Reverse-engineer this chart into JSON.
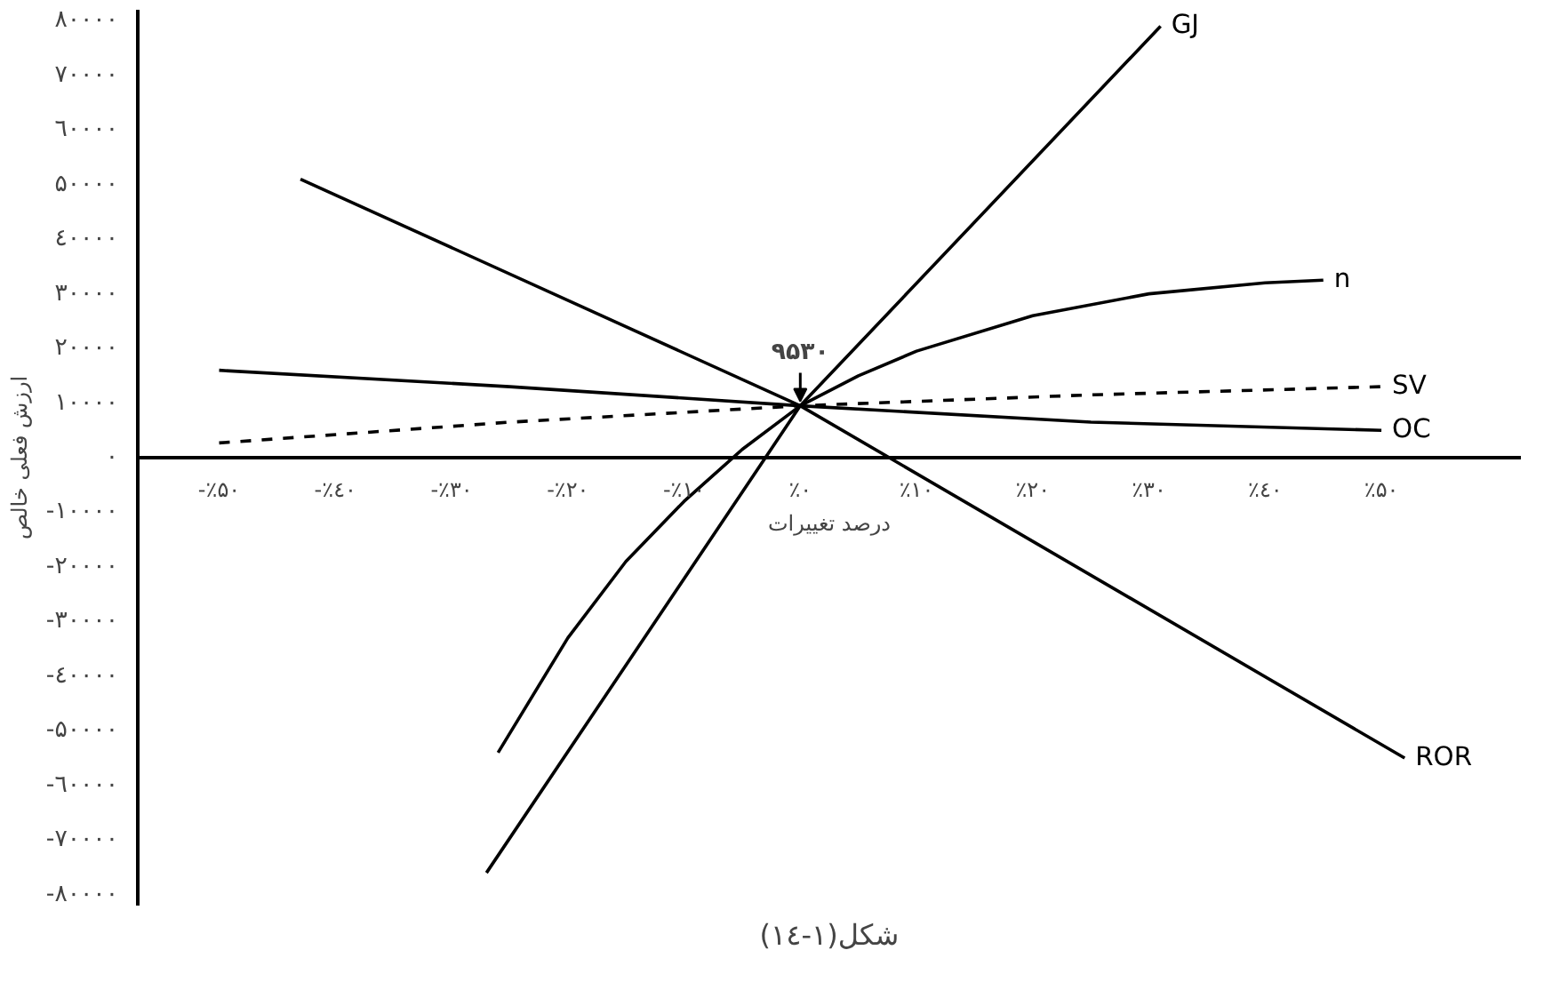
{
  "chart_data": {
    "type": "line",
    "xlabel": "درصد تغییرات",
    "ylabel": "ارزش فعلی خالص",
    "xlim": [
      -57,
      62
    ],
    "ylim": [
      -82000,
      82000
    ],
    "xticks": [
      {
        "value": -50,
        "label": "-٪۵۰"
      },
      {
        "value": -40,
        "label": "-٪٤۰"
      },
      {
        "value": -30,
        "label": "-٪۳۰"
      },
      {
        "value": -20,
        "label": "-٪۲۰"
      },
      {
        "value": -10,
        "label": "-٪۱۰"
      },
      {
        "value": 0,
        "label": "٪۰"
      },
      {
        "value": 10,
        "label": "٪۱۰"
      },
      {
        "value": 20,
        "label": "٪۲۰"
      },
      {
        "value": 30,
        "label": "٪۳۰"
      },
      {
        "value": 40,
        "label": "٪٤۰"
      },
      {
        "value": 50,
        "label": "٪۵۰"
      }
    ],
    "yticks": [
      {
        "value": 80000,
        "label": "۸۰۰۰۰"
      },
      {
        "value": 70000,
        "label": "۷۰۰۰۰"
      },
      {
        "value": 60000,
        "label": "٦۰۰۰۰"
      },
      {
        "value": 50000,
        "label": "۵۰۰۰۰"
      },
      {
        "value": 40000,
        "label": "٤۰۰۰۰"
      },
      {
        "value": 30000,
        "label": "۳۰۰۰۰"
      },
      {
        "value": 20000,
        "label": "۲۰۰۰۰"
      },
      {
        "value": 10000,
        "label": "۱۰۰۰۰"
      },
      {
        "value": 0,
        "label": "۰"
      },
      {
        "value": -10000,
        "label": "-۱۰۰۰۰"
      },
      {
        "value": -20000,
        "label": "-۲۰۰۰۰"
      },
      {
        "value": -30000,
        "label": "-۳۰۰۰۰"
      },
      {
        "value": -40000,
        "label": "-٤۰۰۰۰"
      },
      {
        "value": -50000,
        "label": "-۵۰۰۰۰"
      },
      {
        "value": -60000,
        "label": "-٦۰۰۰۰"
      },
      {
        "value": -70000,
        "label": "-۷۰۰۰۰"
      },
      {
        "value": -80000,
        "label": "-۸۰۰۰۰"
      }
    ],
    "grid": false,
    "legend": false,
    "marker": "none",
    "series": [
      {
        "name": "GJ",
        "color": "#000000",
        "x": [
          -27,
          0,
          31
        ],
        "values": [
          -76000,
          9500,
          79000
        ]
      },
      {
        "name": "ROR",
        "color": "#000000",
        "x": [
          -43,
          0,
          52
        ],
        "values": [
          51000,
          9500,
          -55000
        ]
      },
      {
        "name": "n",
        "color": "#000000",
        "x": [
          -26,
          -20,
          -15,
          -10,
          -5,
          0,
          5,
          10,
          20,
          30,
          40,
          45
        ],
        "values": [
          -54000,
          -33000,
          -19000,
          -8000,
          1500,
          9500,
          15000,
          19500,
          26000,
          30000,
          32000,
          32500
        ]
      },
      {
        "name": "SV",
        "color": "#000000",
        "line_style": "dashed",
        "x": [
          -50,
          -25,
          0,
          25,
          50
        ],
        "values": [
          2700,
          6500,
          9500,
          11500,
          13000
        ]
      },
      {
        "name": "OC",
        "color": "#000000",
        "x": [
          -50,
          -25,
          0,
          25,
          50
        ],
        "values": [
          16000,
          13000,
          9500,
          6500,
          5000
        ]
      }
    ],
    "annotations": [
      {
        "text": "۹۵۳۰",
        "x": 0,
        "y": 9530
      },
      "شکل(۱-۱٤)"
    ]
  }
}
